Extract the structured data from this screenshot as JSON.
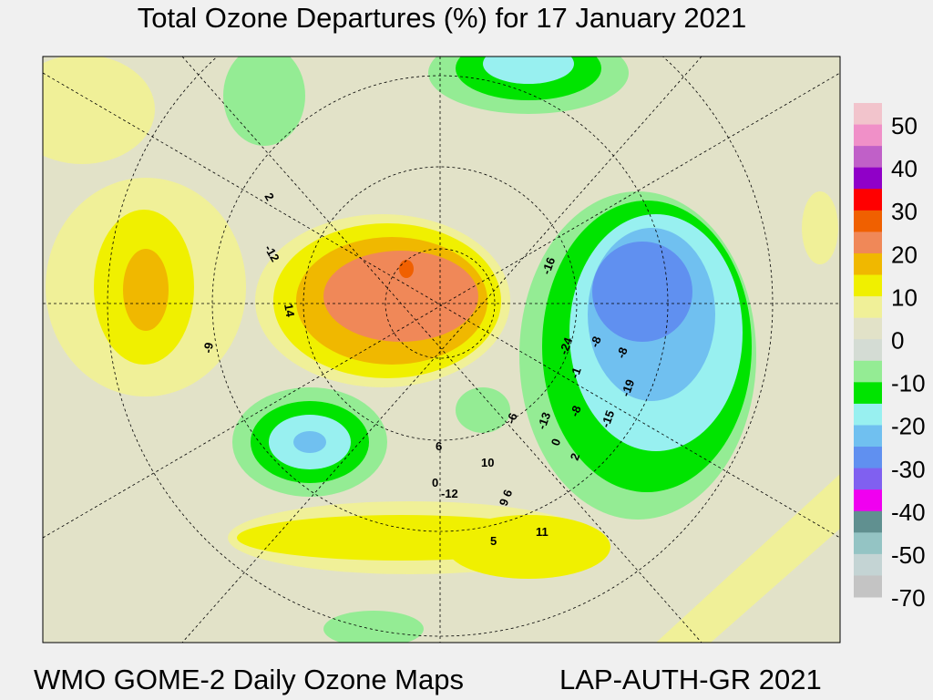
{
  "header": {
    "title": "Total Ozone Departures (%) for 17 January 2021"
  },
  "footer": {
    "left": "WMO GOME-2 Daily Ozone Maps",
    "right": "LAP-AUTH-GR 2021"
  },
  "colorbar": {
    "labels": [
      "50",
      "40",
      "30",
      "20",
      "10",
      "0",
      "-10",
      "-20",
      "-30",
      "-40",
      "-50",
      "-70"
    ],
    "colors": [
      "#f2c4cc",
      "#f090c8",
      "#c060c8",
      "#9000c8",
      "#ff0000",
      "#f06000",
      "#f08858",
      "#f0b800",
      "#f0f000",
      "#f0f098",
      "#e2e2c8",
      "#d4dcd4",
      "#94ec94",
      "#00e400",
      "#98f0f0",
      "#70c0f0",
      "#6090f0",
      "#8060f0",
      "#f000f0",
      "#609090",
      "#94c4c4",
      "#c4d4d4",
      "#c4c4c4"
    ]
  },
  "map": {
    "labels": [
      "-12",
      "14",
      "-9",
      "2",
      "-16",
      "-24",
      "-8",
      "-8",
      "-1",
      "-19",
      "-8",
      "-15",
      "-13",
      "-6",
      "0",
      "2",
      "6",
      "10",
      "0",
      "-12",
      "6",
      "9",
      "5",
      "11"
    ]
  }
}
